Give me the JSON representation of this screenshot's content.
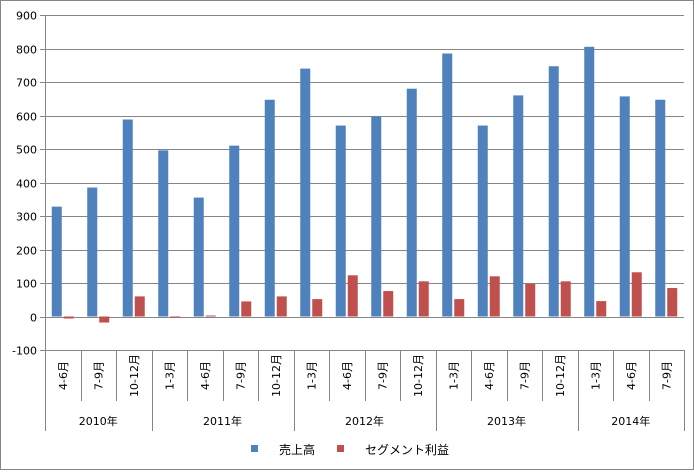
{
  "chart_data": {
    "type": "bar",
    "title": "",
    "xlabel": "",
    "ylabel": "",
    "ylim": [
      -100,
      900
    ],
    "yticks": [
      "-100",
      "0",
      "100",
      "200",
      "300",
      "400",
      "500",
      "600",
      "700",
      "800",
      "900"
    ],
    "grid": "horizontal",
    "legend_position": "bottom",
    "categories": [
      "4-6月",
      "7-9月",
      "10-12月",
      "1-3月",
      "4-6月",
      "7-9月",
      "10-12月",
      "1-3月",
      "4-6月",
      "7-9月",
      "10-12月",
      "1-3月",
      "4-6月",
      "7-9月",
      "10-12月",
      "1-3月",
      "4-6月",
      "7-9月"
    ],
    "groups": [
      {
        "label": "2010年",
        "count": 3
      },
      {
        "label": "2011年",
        "count": 4
      },
      {
        "label": "2012年",
        "count": 4
      },
      {
        "label": "2013年",
        "count": 4
      },
      {
        "label": "2014年",
        "count": 3
      }
    ],
    "series": [
      {
        "name": "売上高",
        "color": "#4f81bd",
        "values": [
          328,
          385,
          588,
          496,
          355,
          510,
          647,
          740,
          570,
          597,
          680,
          785,
          570,
          660,
          747,
          805,
          657,
          647
        ]
      },
      {
        "name": "セグメント利益",
        "color": "#c0504d",
        "values": [
          -6,
          -18,
          60,
          -2,
          3,
          45,
          60,
          52,
          123,
          76,
          105,
          52,
          120,
          98,
          105,
          46,
          132,
          85
        ]
      }
    ]
  }
}
